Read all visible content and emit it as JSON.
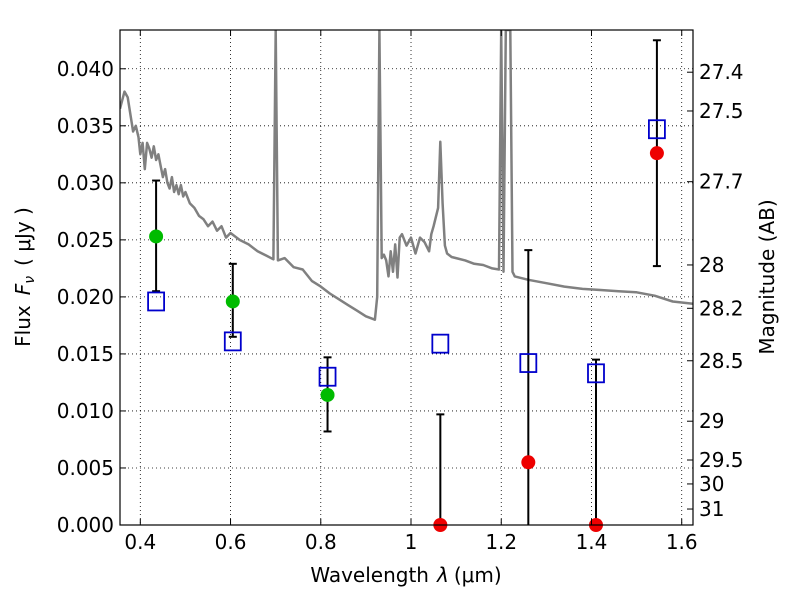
{
  "chart_data": {
    "type": "scatter",
    "xlabel_text": "Wavelength",
    "xlabel_symbol": "λ",
    "xlabel_unit": "(μm)",
    "ylabel_text": "Flux",
    "ylabel_symbol": "F",
    "ylabel_subscript": "ν",
    "ylabel_unit": "( μJy )",
    "ylabel_right": "Magnitude (AB)",
    "xlim": [
      0.355,
      1.625
    ],
    "ylim": [
      0.0,
      0.0434
    ],
    "grid": true,
    "x_ticks": [
      0.4,
      0.6,
      0.8,
      1.0,
      1.2,
      1.4,
      1.6
    ],
    "x_tick_labels": [
      "0.4",
      "0.6",
      "0.8",
      "1",
      "1.2",
      "1.4",
      "1.6"
    ],
    "y_ticks": [
      0.0,
      0.005,
      0.01,
      0.015,
      0.02,
      0.025,
      0.03,
      0.035,
      0.04
    ],
    "y_tick_labels": [
      "0.000",
      "0.005",
      "0.010",
      "0.015",
      "0.020",
      "0.025",
      "0.030",
      "0.035",
      "0.040"
    ],
    "right_ticks": [
      {
        "label": "27.4",
        "flux": 0.0397
      },
      {
        "label": "27.5",
        "flux": 0.0363
      },
      {
        "label": "27.7",
        "flux": 0.0301
      },
      {
        "label": "28",
        "flux": 0.0228
      },
      {
        "label": "28.2",
        "flux": 0.019
      },
      {
        "label": "28.5",
        "flux": 0.0144
      },
      {
        "label": "29",
        "flux": 0.0091
      },
      {
        "label": "29.5",
        "flux": 0.0057
      },
      {
        "label": "30",
        "flux": 0.0036
      },
      {
        "label": "31",
        "flux": 0.0014
      }
    ],
    "series": [
      {
        "type": "line",
        "color": "#808080",
        "x": [
          0.355,
          0.365,
          0.372,
          0.378,
          0.384,
          0.39,
          0.396,
          0.4,
          0.405,
          0.41,
          0.415,
          0.42,
          0.425,
          0.43,
          0.435,
          0.44,
          0.445,
          0.45,
          0.455,
          0.46,
          0.465,
          0.47,
          0.475,
          0.48,
          0.485,
          0.49,
          0.495,
          0.5,
          0.51,
          0.52,
          0.53,
          0.54,
          0.55,
          0.56,
          0.57,
          0.58,
          0.59,
          0.6,
          0.62,
          0.64,
          0.66,
          0.68,
          0.695,
          0.7,
          0.705,
          0.72,
          0.74,
          0.76,
          0.78,
          0.8,
          0.82,
          0.84,
          0.86,
          0.88,
          0.9,
          0.92,
          0.925,
          0.93,
          0.935,
          0.94,
          0.945,
          0.95,
          0.955,
          0.96,
          0.965,
          0.97,
          0.975,
          0.98,
          0.99,
          1.0,
          1.01,
          1.02,
          1.03,
          1.04,
          1.045,
          1.05,
          1.06,
          1.065,
          1.07,
          1.075,
          1.08,
          1.09,
          1.1,
          1.12,
          1.14,
          1.16,
          1.18,
          1.195,
          1.2,
          1.205,
          1.21,
          1.215,
          1.22,
          1.225,
          1.23,
          1.26,
          1.3,
          1.34,
          1.38,
          1.42,
          1.46,
          1.5,
          1.54,
          1.58,
          1.625
        ],
        "y": [
          0.0365,
          0.038,
          0.0375,
          0.036,
          0.0345,
          0.035,
          0.034,
          0.0325,
          0.0335,
          0.0312,
          0.0335,
          0.033,
          0.0322,
          0.0332,
          0.032,
          0.0325,
          0.0315,
          0.0305,
          0.0312,
          0.03,
          0.0295,
          0.0305,
          0.0292,
          0.0298,
          0.029,
          0.0298,
          0.0288,
          0.0292,
          0.0282,
          0.0278,
          0.0271,
          0.0268,
          0.0262,
          0.0266,
          0.0258,
          0.0262,
          0.0252,
          0.0256,
          0.025,
          0.0246,
          0.024,
          0.0236,
          0.0233,
          0.0434,
          0.0232,
          0.0234,
          0.0226,
          0.0224,
          0.0214,
          0.0209,
          0.0203,
          0.0198,
          0.0193,
          0.0188,
          0.0183,
          0.018,
          0.02,
          0.0434,
          0.0234,
          0.0237,
          0.0232,
          0.0218,
          0.024,
          0.0222,
          0.0246,
          0.0217,
          0.0252,
          0.0255,
          0.0245,
          0.0252,
          0.0238,
          0.0252,
          0.0248,
          0.024,
          0.0255,
          0.0262,
          0.0278,
          0.0336,
          0.0282,
          0.0245,
          0.0238,
          0.0235,
          0.0234,
          0.0232,
          0.0229,
          0.0228,
          0.0225,
          0.0224,
          0.0434,
          0.0222,
          0.0434,
          0.0434,
          0.0434,
          0.0222,
          0.0218,
          0.0215,
          0.0212,
          0.0209,
          0.0207,
          0.0206,
          0.0205,
          0.0204,
          0.0201,
          0.0196,
          0.0194
        ]
      },
      {
        "type": "markers",
        "marker": "square",
        "color": "#0000cc",
        "x": [
          0.435,
          0.605,
          0.815,
          1.065,
          1.26,
          1.41,
          1.545
        ],
        "y": [
          0.0196,
          0.0161,
          0.013,
          0.0159,
          0.0142,
          0.0133,
          0.0347
        ]
      },
      {
        "type": "markers",
        "marker": "circle",
        "color": "#00bb00",
        "x": [
          0.435,
          0.605,
          0.815
        ],
        "y": [
          0.0253,
          0.0196,
          0.0114
        ],
        "yerr_low": [
          0.0205,
          0.0165,
          0.0082
        ],
        "yerr_high": [
          0.0302,
          0.0229,
          0.0147
        ]
      },
      {
        "type": "markers",
        "marker": "circle",
        "color": "#ee0000",
        "x": [
          1.065,
          1.26,
          1.41,
          1.545
        ],
        "y": [
          0.0,
          0.0055,
          0.0,
          0.0326
        ],
        "yerr_low": [
          0.0,
          0.0,
          0.0,
          0.0227
        ],
        "yerr_high": [
          0.0097,
          0.0241,
          0.0145,
          0.0425
        ]
      }
    ]
  }
}
